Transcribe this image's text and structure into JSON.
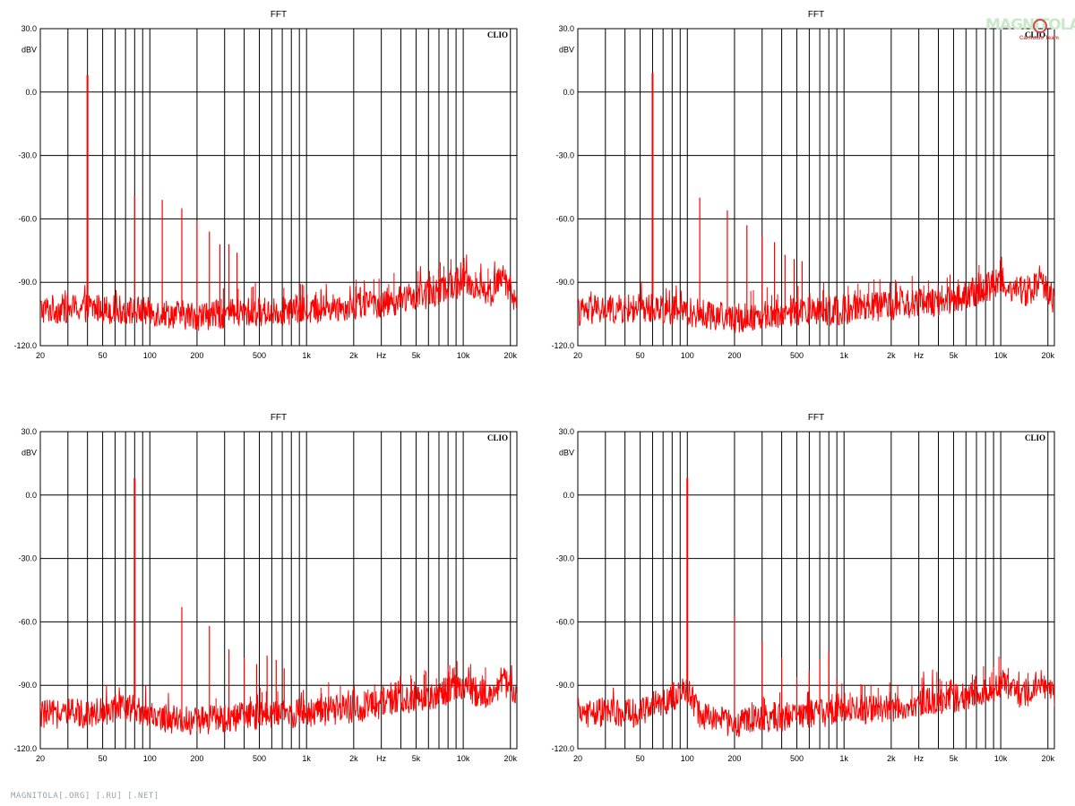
{
  "watermark": {
    "text": "MAGNITOLA",
    "sub": "CarAudio Team"
  },
  "footer": {
    "text": "MAGNITOLA[.ORG] [.RU] [.NET]"
  },
  "chart_data": [
    {
      "type": "line",
      "title": "FFT",
      "brand": "CLIO",
      "ylabel": "dBV",
      "xunit": "Hz",
      "xscale": "log",
      "xlim": [
        20,
        22000
      ],
      "ylim": [
        -120,
        30
      ],
      "yticks": [
        "30.0",
        "0.0",
        "-30.0",
        "-60.0",
        "-90.0",
        "-120.0"
      ],
      "xticks": [
        "20",
        "50",
        "100",
        "200",
        "500",
        "1k",
        "2k",
        "Hz",
        "5k",
        "10k",
        "20k"
      ],
      "fundamental": {
        "freq": 40,
        "level": 8
      },
      "harmonics": [
        [
          80,
          -49
        ],
        [
          120,
          -51
        ],
        [
          160,
          -55
        ],
        [
          200,
          -61
        ],
        [
          240,
          -66
        ],
        [
          280,
          -72
        ],
        [
          320,
          -72
        ],
        [
          360,
          -76
        ]
      ],
      "noise_floor": [
        [
          20,
          -103
        ],
        [
          40,
          -102
        ],
        [
          60,
          -103
        ],
        [
          100,
          -104
        ],
        [
          200,
          -106
        ],
        [
          500,
          -104
        ],
        [
          1000,
          -103
        ],
        [
          2000,
          -101
        ],
        [
          3000,
          -100
        ],
        [
          5000,
          -97
        ],
        [
          8000,
          -93
        ],
        [
          10000,
          -89
        ],
        [
          12000,
          -92
        ],
        [
          15000,
          -95
        ],
        [
          18000,
          -87
        ],
        [
          22000,
          -100
        ]
      ],
      "series": [
        {
          "color": "#ff0000"
        }
      ]
    },
    {
      "type": "line",
      "title": "FFT",
      "brand": "CLIO",
      "ylabel": "dBV",
      "xunit": "Hz",
      "xscale": "log",
      "xlim": [
        20,
        22000
      ],
      "ylim": [
        -120,
        30
      ],
      "yticks": [
        "30.0",
        "0.0",
        "-30.0",
        "-60.0",
        "-90.0",
        "-120.0"
      ],
      "xticks": [
        "20",
        "50",
        "100",
        "200",
        "500",
        "1k",
        "2k",
        "Hz",
        "5k",
        "10k",
        "20k"
      ],
      "fundamental": {
        "freq": 60,
        "level": 9
      },
      "harmonics": [
        [
          120,
          -50
        ],
        [
          180,
          -56
        ],
        [
          240,
          -63
        ],
        [
          300,
          -68
        ],
        [
          360,
          -71
        ],
        [
          420,
          -77
        ],
        [
          480,
          -79
        ],
        [
          540,
          -80
        ]
      ],
      "noise_floor": [
        [
          20,
          -104
        ],
        [
          60,
          -102
        ],
        [
          100,
          -104
        ],
        [
          200,
          -107
        ],
        [
          500,
          -104
        ],
        [
          1000,
          -103
        ],
        [
          2000,
          -101
        ],
        [
          3000,
          -100
        ],
        [
          5000,
          -98
        ],
        [
          8000,
          -93
        ],
        [
          10000,
          -89
        ],
        [
          12000,
          -93
        ],
        [
          15000,
          -95
        ],
        [
          18000,
          -88
        ],
        [
          22000,
          -100
        ]
      ],
      "series": [
        {
          "color": "#ff0000"
        }
      ]
    },
    {
      "type": "line",
      "title": "FFT",
      "brand": "CLIO",
      "ylabel": "dBV",
      "xunit": "Hz",
      "xscale": "log",
      "xlim": [
        20,
        22000
      ],
      "ylim": [
        -120,
        30
      ],
      "yticks": [
        "30.0",
        "0.0",
        "-30.0",
        "-60.0",
        "-90.0",
        "-120.0"
      ],
      "xticks": [
        "20",
        "50",
        "100",
        "200",
        "500",
        "1k",
        "2k",
        "Hz",
        "5k",
        "10k",
        "20k"
      ],
      "fundamental": {
        "freq": 80,
        "level": 8
      },
      "harmonics": [
        [
          160,
          -53
        ],
        [
          240,
          -62
        ],
        [
          320,
          -73
        ],
        [
          400,
          -77
        ],
        [
          480,
          -80
        ],
        [
          560,
          -76
        ],
        [
          640,
          -78
        ],
        [
          720,
          -82
        ]
      ],
      "noise_floor": [
        [
          20,
          -104
        ],
        [
          40,
          -103
        ],
        [
          80,
          -100
        ],
        [
          100,
          -105
        ],
        [
          200,
          -107
        ],
        [
          500,
          -104
        ],
        [
          1000,
          -103
        ],
        [
          2000,
          -101
        ],
        [
          3000,
          -99
        ],
        [
          5000,
          -96
        ],
        [
          8000,
          -93
        ],
        [
          10000,
          -90
        ],
        [
          12000,
          -93
        ],
        [
          15000,
          -95
        ],
        [
          18000,
          -87
        ],
        [
          22000,
          -96
        ]
      ],
      "series": [
        {
          "color": "#ff0000"
        }
      ]
    },
    {
      "type": "line",
      "title": "FFT",
      "brand": "CLIO",
      "ylabel": "dBV",
      "xunit": "Hz",
      "xscale": "log",
      "xlim": [
        20,
        22000
      ],
      "ylim": [
        -120,
        30
      ],
      "yticks": [
        "30.0",
        "0.0",
        "-30.0",
        "-60.0",
        "-90.0",
        "-120.0"
      ],
      "xticks": [
        "20",
        "50",
        "100",
        "200",
        "500",
        "1k",
        "2k",
        "Hz",
        "5k",
        "10k",
        "20k"
      ],
      "fundamental": {
        "freq": 100,
        "level": 8
      },
      "harmonics": [
        [
          200,
          -57
        ],
        [
          300,
          -69
        ],
        [
          400,
          -77
        ],
        [
          500,
          -86
        ],
        [
          600,
          -83
        ],
        [
          700,
          -78
        ],
        [
          800,
          -74
        ],
        [
          900,
          -87
        ]
      ],
      "noise_floor": [
        [
          20,
          -103
        ],
        [
          50,
          -103
        ],
        [
          100,
          -92
        ],
        [
          120,
          -104
        ],
        [
          200,
          -108
        ],
        [
          500,
          -104
        ],
        [
          1000,
          -102
        ],
        [
          2000,
          -101
        ],
        [
          3000,
          -99
        ],
        [
          5000,
          -96
        ],
        [
          8000,
          -93
        ],
        [
          10000,
          -89
        ],
        [
          12000,
          -93
        ],
        [
          15000,
          -95
        ],
        [
          18000,
          -87
        ],
        [
          22000,
          -96
        ]
      ],
      "series": [
        {
          "color": "#ff0000"
        }
      ]
    }
  ]
}
